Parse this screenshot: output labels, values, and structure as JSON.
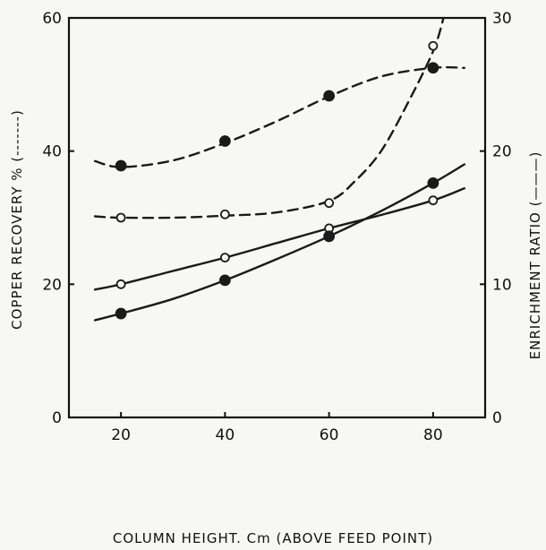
{
  "chart_data": {
    "type": "line",
    "xlabel": "COLUMN HEIGHT. Cm (ABOVE FEED POINT)",
    "ylabel_left": "COPPER RECOVERY %  (-------)",
    "ylabel_right": "ENRICHMENT RATIO (———)",
    "xlim": [
      10,
      90
    ],
    "ylim_left": [
      0,
      60
    ],
    "ylim_right": [
      0,
      30
    ],
    "x_ticks": [
      "20",
      "40",
      "60",
      "80"
    ],
    "y_left_ticks": [
      "0",
      "20",
      "40",
      "60"
    ],
    "y_right_ticks": [
      "0",
      "10",
      "20",
      "30"
    ],
    "grid": false,
    "series": [
      {
        "axis": "left",
        "style": "dashed",
        "marker": "filled",
        "points": [
          [
            20,
            37.8
          ],
          [
            40,
            41.5
          ],
          [
            60,
            48.3
          ],
          [
            80,
            52.5
          ]
        ],
        "curve": [
          [
            15,
            38.5
          ],
          [
            20,
            37.6
          ],
          [
            30,
            38.6
          ],
          [
            40,
            41.2
          ],
          [
            50,
            44.5
          ],
          [
            60,
            48.2
          ],
          [
            70,
            51.2
          ],
          [
            80,
            52.5
          ],
          [
            86,
            52.5
          ]
        ]
      },
      {
        "axis": "left",
        "style": "dashed",
        "marker": "open",
        "points": [
          [
            20,
            30
          ],
          [
            40,
            30.5
          ],
          [
            60,
            32.2
          ],
          [
            80,
            55.8
          ]
        ],
        "curve": [
          [
            15,
            30.2
          ],
          [
            20,
            30
          ],
          [
            30,
            30
          ],
          [
            40,
            30.3
          ],
          [
            50,
            30.8
          ],
          [
            60,
            32.5
          ],
          [
            65,
            35.5
          ],
          [
            70,
            40
          ],
          [
            75,
            47
          ],
          [
            80,
            55
          ],
          [
            82,
            60
          ]
        ]
      },
      {
        "axis": "right",
        "style": "solid",
        "marker": "open",
        "points": [
          [
            20,
            10
          ],
          [
            40,
            12
          ],
          [
            60,
            14.2
          ],
          [
            80,
            16.3
          ]
        ],
        "curve": [
          [
            15,
            9.6
          ],
          [
            20,
            10
          ],
          [
            30,
            11
          ],
          [
            40,
            12
          ],
          [
            50,
            13.1
          ],
          [
            60,
            14.2
          ],
          [
            70,
            15.2
          ],
          [
            80,
            16.3
          ],
          [
            86,
            17.2
          ]
        ]
      },
      {
        "axis": "right",
        "style": "solid",
        "marker": "filled",
        "points": [
          [
            20,
            7.8
          ],
          [
            40,
            10.3
          ],
          [
            60,
            13.6
          ],
          [
            80,
            17.6
          ]
        ],
        "curve": [
          [
            15,
            7.3
          ],
          [
            20,
            7.8
          ],
          [
            30,
            8.9
          ],
          [
            40,
            10.3
          ],
          [
            50,
            11.9
          ],
          [
            60,
            13.6
          ],
          [
            70,
            15.5
          ],
          [
            80,
            17.6
          ],
          [
            86,
            19
          ]
        ]
      }
    ]
  }
}
